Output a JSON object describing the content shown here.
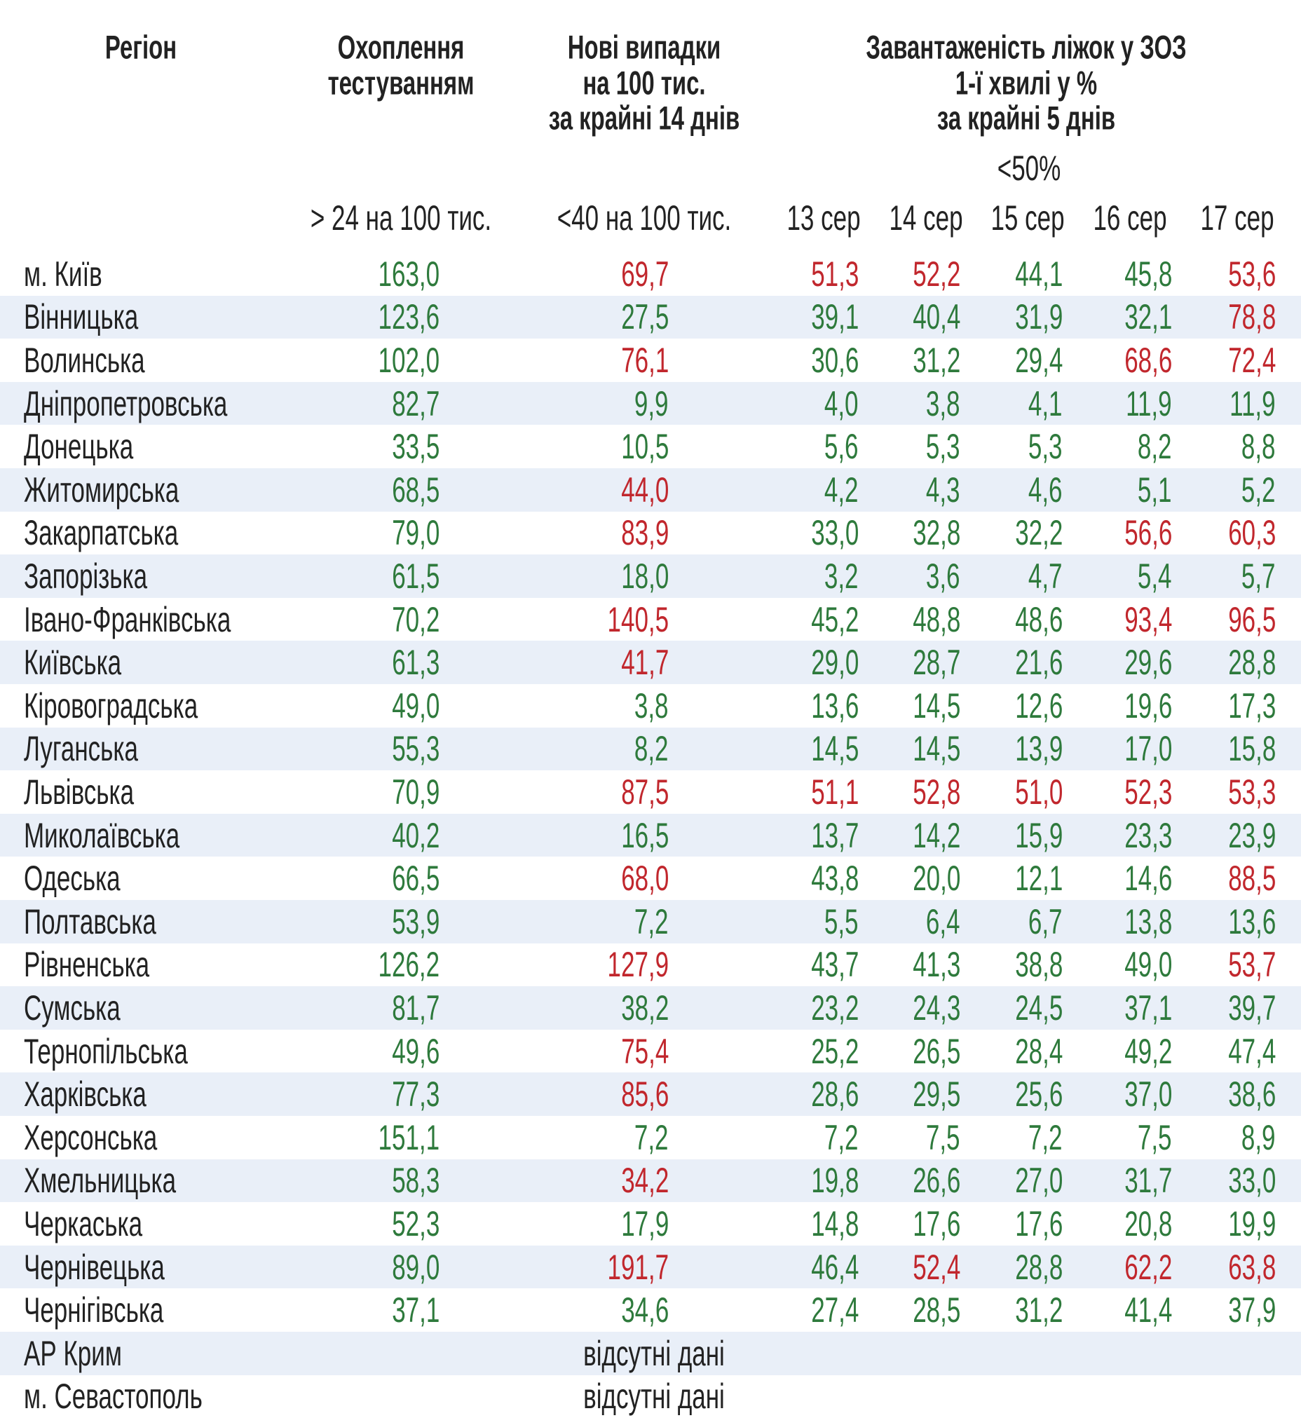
{
  "header": {
    "columns": [
      [
        "Регіон"
      ],
      [
        "Охоплення",
        "тестуванням"
      ],
      [
        "Нові випадки",
        "на 100 тис.",
        "за крайні 14 днів"
      ],
      [
        "Завантаженість ліжок у ЗОЗ",
        "1-ї хвилі у %",
        "за крайні 5 днів"
      ]
    ],
    "thresholds": [
      "> 24 на 100 тис.",
      "<40 на 100 тис."
    ],
    "bed_threshold": "<50%",
    "dates": [
      "13 сер",
      "14 сер",
      "15 сер",
      "16 сер",
      "17 сер"
    ]
  },
  "palette": {
    "green": "#2e7a3c",
    "red": "#c1272d"
  },
  "rows": [
    {
      "region": "м. Київ",
      "values": [
        "163,0",
        "69,7",
        "51,3",
        "52,2",
        "44,1",
        "45,8",
        "53,6"
      ],
      "colors": [
        "green",
        "red",
        "red",
        "red",
        "green",
        "green",
        "red"
      ]
    },
    {
      "region": "Вінницька",
      "values": [
        "123,6",
        "27,5",
        "39,1",
        "40,4",
        "31,9",
        "32,1",
        "78,8"
      ],
      "colors": [
        "green",
        "green",
        "green",
        "green",
        "green",
        "green",
        "red"
      ]
    },
    {
      "region": "Волинська",
      "values": [
        "102,0",
        "76,1",
        "30,6",
        "31,2",
        "29,4",
        "68,6",
        "72,4"
      ],
      "colors": [
        "green",
        "red",
        "green",
        "green",
        "green",
        "red",
        "red"
      ]
    },
    {
      "region": "Дніпропетровська",
      "values": [
        "82,7",
        "9,9",
        "4,0",
        "3,8",
        "4,1",
        "11,9",
        "11,9"
      ],
      "colors": [
        "green",
        "green",
        "green",
        "green",
        "green",
        "green",
        "green"
      ]
    },
    {
      "region": "Донецька",
      "values": [
        "33,5",
        "10,5",
        "5,6",
        "5,3",
        "5,3",
        "8,2",
        "8,8"
      ],
      "colors": [
        "green",
        "green",
        "green",
        "green",
        "green",
        "green",
        "green"
      ]
    },
    {
      "region": "Житомирська",
      "values": [
        "68,5",
        "44,0",
        "4,2",
        "4,3",
        "4,6",
        "5,1",
        "5,2"
      ],
      "colors": [
        "green",
        "red",
        "green",
        "green",
        "green",
        "green",
        "green"
      ]
    },
    {
      "region": "Закарпатська",
      "values": [
        "79,0",
        "83,9",
        "33,0",
        "32,8",
        "32,2",
        "56,6",
        "60,3"
      ],
      "colors": [
        "green",
        "red",
        "green",
        "green",
        "green",
        "red",
        "red"
      ]
    },
    {
      "region": "Запорізька",
      "values": [
        "61,5",
        "18,0",
        "3,2",
        "3,6",
        "4,7",
        "5,4",
        "5,7"
      ],
      "colors": [
        "green",
        "green",
        "green",
        "green",
        "green",
        "green",
        "green"
      ]
    },
    {
      "region": "Івано-Франківська",
      "values": [
        "70,2",
        "140,5",
        "45,2",
        "48,8",
        "48,6",
        "93,4",
        "96,5"
      ],
      "colors": [
        "green",
        "red",
        "green",
        "green",
        "green",
        "red",
        "red"
      ]
    },
    {
      "region": "Київська",
      "values": [
        "61,3",
        "41,7",
        "29,0",
        "28,7",
        "21,6",
        "29,6",
        "28,8"
      ],
      "colors": [
        "green",
        "red",
        "green",
        "green",
        "green",
        "green",
        "green"
      ]
    },
    {
      "region": "Кіровоградська",
      "values": [
        "49,0",
        "3,8",
        "13,6",
        "14,5",
        "12,6",
        "19,6",
        "17,3"
      ],
      "colors": [
        "green",
        "green",
        "green",
        "green",
        "green",
        "green",
        "green"
      ]
    },
    {
      "region": "Луганська",
      "values": [
        "55,3",
        "8,2",
        "14,5",
        "14,5",
        "13,9",
        "17,0",
        "15,8"
      ],
      "colors": [
        "green",
        "green",
        "green",
        "green",
        "green",
        "green",
        "green"
      ]
    },
    {
      "region": "Львівська",
      "values": [
        "70,9",
        "87,5",
        "51,1",
        "52,8",
        "51,0",
        "52,3",
        "53,3"
      ],
      "colors": [
        "green",
        "red",
        "red",
        "red",
        "red",
        "red",
        "red"
      ]
    },
    {
      "region": "Миколаївська",
      "values": [
        "40,2",
        "16,5",
        "13,7",
        "14,2",
        "15,9",
        "23,3",
        "23,9"
      ],
      "colors": [
        "green",
        "green",
        "green",
        "green",
        "green",
        "green",
        "green"
      ]
    },
    {
      "region": "Одеська",
      "values": [
        "66,5",
        "68,0",
        "43,8",
        "20,0",
        "12,1",
        "14,6",
        "88,5"
      ],
      "colors": [
        "green",
        "red",
        "green",
        "green",
        "green",
        "green",
        "red"
      ]
    },
    {
      "region": "Полтавська",
      "values": [
        "53,9",
        "7,2",
        "5,5",
        "6,4",
        "6,7",
        "13,8",
        "13,6"
      ],
      "colors": [
        "green",
        "green",
        "green",
        "green",
        "green",
        "green",
        "green"
      ]
    },
    {
      "region": "Рівненська",
      "values": [
        "126,2",
        "127,9",
        "43,7",
        "41,3",
        "38,8",
        "49,0",
        "53,7"
      ],
      "colors": [
        "green",
        "red",
        "green",
        "green",
        "green",
        "green",
        "red"
      ]
    },
    {
      "region": "Сумська",
      "values": [
        "81,7",
        "38,2",
        "23,2",
        "24,3",
        "24,5",
        "37,1",
        "39,7"
      ],
      "colors": [
        "green",
        "green",
        "green",
        "green",
        "green",
        "green",
        "green"
      ]
    },
    {
      "region": "Тернопільська",
      "values": [
        "49,6",
        "75,4",
        "25,2",
        "26,5",
        "28,4",
        "49,2",
        "47,4"
      ],
      "colors": [
        "green",
        "red",
        "green",
        "green",
        "green",
        "green",
        "green"
      ]
    },
    {
      "region": "Харківська",
      "values": [
        "77,3",
        "85,6",
        "28,6",
        "29,5",
        "25,6",
        "37,0",
        "38,6"
      ],
      "colors": [
        "green",
        "red",
        "green",
        "green",
        "green",
        "green",
        "green"
      ]
    },
    {
      "region": "Херсонська",
      "values": [
        "151,1",
        "7,2",
        "7,2",
        "7,5",
        "7,2",
        "7,5",
        "8,9"
      ],
      "colors": [
        "green",
        "green",
        "green",
        "green",
        "green",
        "green",
        "green"
      ]
    },
    {
      "region": "Хмельницька",
      "values": [
        "58,3",
        "34,2",
        "19,8",
        "26,6",
        "27,0",
        "31,7",
        "33,0"
      ],
      "colors": [
        "green",
        "red",
        "green",
        "green",
        "green",
        "green",
        "green"
      ]
    },
    {
      "region": "Черкаська",
      "values": [
        "52,3",
        "17,9",
        "14,8",
        "17,6",
        "17,6",
        "20,8",
        "19,9"
      ],
      "colors": [
        "green",
        "green",
        "green",
        "green",
        "green",
        "green",
        "green"
      ]
    },
    {
      "region": "Чернівецька",
      "values": [
        "89,0",
        "191,7",
        "46,4",
        "52,4",
        "28,8",
        "62,2",
        "63,8"
      ],
      "colors": [
        "green",
        "red",
        "green",
        "red",
        "green",
        "red",
        "red"
      ]
    },
    {
      "region": "Чернігівська",
      "values": [
        "37,1",
        "34,6",
        "27,4",
        "28,5",
        "31,2",
        "41,4",
        "37,9"
      ],
      "colors": [
        "green",
        "green",
        "green",
        "green",
        "green",
        "green",
        "green"
      ]
    },
    {
      "region": "АР Крим",
      "note": "відсутні дані"
    },
    {
      "region": "м. Севастополь",
      "note": "відсутні дані"
    }
  ]
}
